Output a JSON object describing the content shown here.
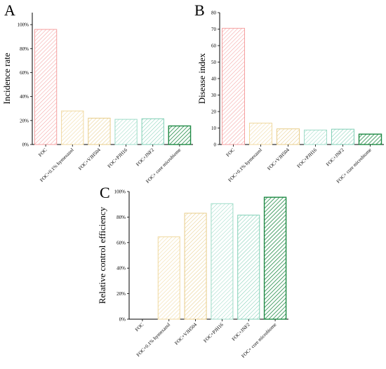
{
  "figure": {
    "panels": [
      "A",
      "B",
      "C"
    ]
  },
  "colors": {
    "FOC": "#f5a0a0",
    "FOC+0.1% hymexazol": "#f0d9a0",
    "FOC+VJH504": "#e8cd8a",
    "FOC+PJH16": "#9fdcc8",
    "FOC+JNF2": "#7fcfb5",
    "FOC+ core microbiome": "#1f8a45"
  },
  "chart_data": [
    {
      "panel": "A",
      "type": "bar",
      "ylabel": "Incidence rate",
      "categories": [
        "FOC",
        "FOC+0.1% hymexazol",
        "FOC+VJH504",
        "FOC+PJH16",
        "FOC+JNF2",
        "FOC+ core microbiome"
      ],
      "values": [
        96,
        28,
        22,
        21,
        21.5,
        15.5
      ],
      "ylim": [
        0,
        110
      ],
      "yticks": [
        0,
        20,
        40,
        60,
        80,
        100
      ],
      "ytick_labels": [
        "0%",
        "20%",
        "40%",
        "60%",
        "80%",
        "100%"
      ],
      "grid": false
    },
    {
      "panel": "B",
      "type": "bar",
      "ylabel": "Disease index",
      "categories": [
        "FOC",
        "FOC+0.1% hymexazol",
        "FOC+VJH504",
        "FOC+PJH16",
        "FOC+JNF2",
        "FOC+ core microbiome"
      ],
      "values": [
        70.5,
        13,
        9.5,
        8.8,
        9.3,
        6.3
      ],
      "ylim": [
        0,
        80
      ],
      "yticks": [
        0,
        10,
        20,
        30,
        40,
        50,
        60,
        70,
        80
      ],
      "ytick_labels": [
        "0",
        "10",
        "20",
        "30",
        "40",
        "50",
        "60",
        "70",
        "80"
      ],
      "grid": false
    },
    {
      "panel": "C",
      "type": "bar",
      "ylabel": "Relative control efficiency",
      "categories": [
        "FOC",
        "FOC+0.1% hymexazol",
        "FOC+VJH504",
        "FOC+PJH16",
        "FOC+JNF2",
        "FOC+ core microbiome"
      ],
      "values": [
        0,
        64.5,
        83,
        90.5,
        81.5,
        95.5
      ],
      "ylim": [
        0,
        100
      ],
      "yticks": [
        0,
        20,
        40,
        60,
        80,
        100
      ],
      "ytick_labels": [
        "0%",
        "20%",
        "40%",
        "60%",
        "80%",
        "100%"
      ],
      "grid": false
    }
  ]
}
